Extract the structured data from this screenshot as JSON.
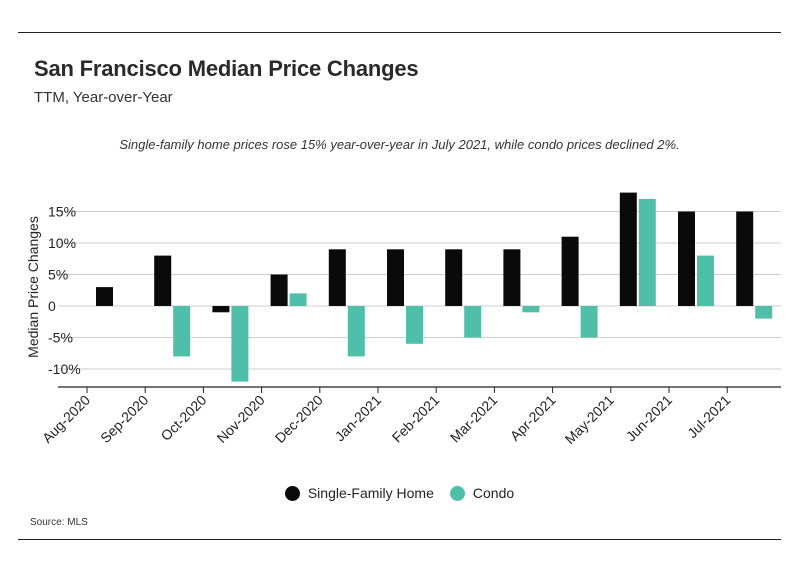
{
  "header": {
    "title": "San Francisco Median Price Changes",
    "subtitle": "TTM, Year-over-Year",
    "note": "Single-family home prices rose 15% year-over-year in July 2021, while condo prices declined 2%."
  },
  "footer": {
    "source": "Source:  MLS"
  },
  "colors": {
    "single_family": "#0a0a0a",
    "condo": "#4fbfaa",
    "grid": "#cfcfcf",
    "axis": "#222222"
  },
  "chart_data": {
    "type": "bar",
    "title": "San Francisco Median Price Changes",
    "subtitle": "TTM, Year-over-Year",
    "xlabel": "",
    "ylabel": "Median Price Changes",
    "categories": [
      "Aug-2020",
      "Sep-2020",
      "Oct-2020",
      "Nov-2020",
      "Dec-2020",
      "Jan-2021",
      "Feb-2021",
      "Mar-2021",
      "Apr-2021",
      "May-2021",
      "Jun-2021",
      "Jul-2021"
    ],
    "series": [
      {
        "name": "Single-Family Home",
        "values": [
          3,
          8,
          -1,
          5,
          9,
          9,
          9,
          9,
          11,
          18,
          15,
          15
        ]
      },
      {
        "name": "Condo",
        "values": [
          0,
          -8,
          -12,
          2,
          -8,
          -6,
          -5,
          -1,
          -5,
          17,
          8,
          -2
        ]
      }
    ],
    "yticks": [
      15,
      10,
      5,
      0,
      -5,
      -10
    ],
    "ytick_labels": [
      "15%",
      "10%",
      "5%",
      "0",
      "-5%",
      "-10%"
    ],
    "ylim": [
      -12.5,
      20
    ],
    "grid": true,
    "legend_position": "bottom-center"
  }
}
